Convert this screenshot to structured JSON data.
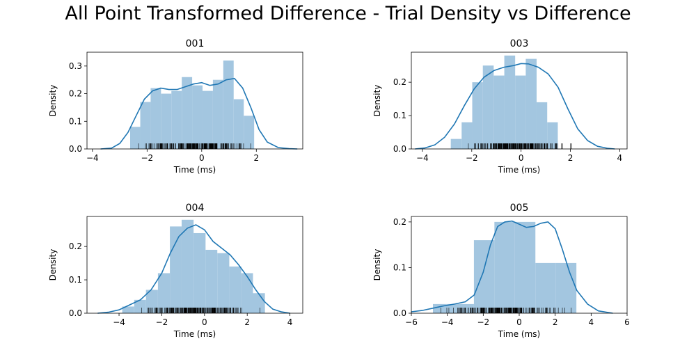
{
  "title": "All Point Transformed Difference - Trial Density vs Difference",
  "hist_color": "#a3c6e0",
  "kde_color": "#1f77b4",
  "rug_color": "#000000",
  "chart_data": [
    {
      "type": "histogram-kde",
      "title": "001",
      "xlabel": "Time (ms)",
      "ylabel": "Density",
      "xlim": [
        -4.2,
        3.7
      ],
      "ylim": [
        0,
        0.35
      ],
      "xticks": [
        -4,
        -2,
        0,
        2
      ],
      "yticks": [
        0.0,
        0.1,
        0.2,
        0.3
      ],
      "bin_edges": [
        -2.62,
        -2.25,
        -1.87,
        -1.49,
        -1.11,
        -0.73,
        -0.35,
        0.03,
        0.41,
        0.79,
        1.17,
        1.54,
        1.92,
        2.3
      ],
      "bin_values": [
        0.08,
        0.17,
        0.22,
        0.2,
        0.21,
        0.26,
        0.23,
        0.21,
        0.25,
        0.32,
        0.18,
        0.12,
        0.0
      ],
      "kde": [
        [
          -3.7,
          0.0
        ],
        [
          -3.3,
          0.003
        ],
        [
          -3.0,
          0.02
        ],
        [
          -2.7,
          0.06
        ],
        [
          -2.4,
          0.12
        ],
        [
          -2.1,
          0.18
        ],
        [
          -1.8,
          0.21
        ],
        [
          -1.5,
          0.22
        ],
        [
          -1.2,
          0.215
        ],
        [
          -0.9,
          0.215
        ],
        [
          -0.6,
          0.225
        ],
        [
          -0.3,
          0.235
        ],
        [
          0.0,
          0.24
        ],
        [
          0.3,
          0.23
        ],
        [
          0.6,
          0.235
        ],
        [
          0.9,
          0.25
        ],
        [
          1.2,
          0.255
        ],
        [
          1.5,
          0.22
        ],
        [
          1.8,
          0.15
        ],
        [
          2.1,
          0.07
        ],
        [
          2.4,
          0.025
        ],
        [
          2.8,
          0.005
        ],
        [
          3.2,
          0.001
        ],
        [
          3.5,
          0.0
        ]
      ],
      "rug_range": [
        -2.6,
        2.3
      ]
    },
    {
      "type": "histogram-kde",
      "title": "003",
      "xlabel": "Time (ms)",
      "ylabel": "Density",
      "xlim": [
        -4.45,
        4.3
      ],
      "ylim": [
        0,
        0.29
      ],
      "xticks": [
        -4,
        -2,
        0,
        2,
        4
      ],
      "yticks": [
        0.0,
        0.1,
        0.2
      ],
      "bin_edges": [
        -2.85,
        -2.41,
        -1.98,
        -1.55,
        -1.11,
        -0.68,
        -0.24,
        0.19,
        0.63,
        1.06,
        1.49,
        1.93,
        2.36
      ],
      "bin_values": [
        0.03,
        0.08,
        0.2,
        0.25,
        0.22,
        0.28,
        0.22,
        0.27,
        0.14,
        0.08,
        0.0,
        0.0
      ],
      "kde": [
        [
          -4.3,
          0.0
        ],
        [
          -3.9,
          0.003
        ],
        [
          -3.5,
          0.012
        ],
        [
          -3.1,
          0.035
        ],
        [
          -2.7,
          0.075
        ],
        [
          -2.3,
          0.13
        ],
        [
          -1.9,
          0.18
        ],
        [
          -1.5,
          0.215
        ],
        [
          -1.1,
          0.235
        ],
        [
          -0.7,
          0.245
        ],
        [
          -0.3,
          0.25
        ],
        [
          0.0,
          0.256
        ],
        [
          0.3,
          0.255
        ],
        [
          0.7,
          0.245
        ],
        [
          1.1,
          0.225
        ],
        [
          1.5,
          0.185
        ],
        [
          1.9,
          0.12
        ],
        [
          2.3,
          0.06
        ],
        [
          2.7,
          0.025
        ],
        [
          3.1,
          0.008
        ],
        [
          3.5,
          0.002
        ],
        [
          3.8,
          0.0
        ]
      ],
      "rug_range": [
        -2.85,
        2.5
      ]
    },
    {
      "type": "histogram-kde",
      "title": "004",
      "xlabel": "Time (ms)",
      "ylabel": "Density",
      "xlim": [
        -5.5,
        4.6
      ],
      "ylim": [
        0,
        0.29
      ],
      "xticks": [
        -4,
        -2,
        0,
        2,
        4
      ],
      "yticks": [
        0.0,
        0.1,
        0.2
      ],
      "bin_edges": [
        -3.85,
        -3.29,
        -2.74,
        -2.18,
        -1.62,
        -1.07,
        -0.51,
        0.05,
        0.6,
        1.16,
        1.72,
        2.27,
        2.83
      ],
      "bin_values": [
        0.02,
        0.04,
        0.07,
        0.12,
        0.26,
        0.28,
        0.24,
        0.19,
        0.18,
        0.14,
        0.12,
        0.06
      ],
      "kde": [
        [
          -5.0,
          0.0
        ],
        [
          -4.5,
          0.003
        ],
        [
          -4.0,
          0.01
        ],
        [
          -3.5,
          0.025
        ],
        [
          -3.0,
          0.04
        ],
        [
          -2.5,
          0.07
        ],
        [
          -2.0,
          0.12
        ],
        [
          -1.6,
          0.18
        ],
        [
          -1.2,
          0.23
        ],
        [
          -0.8,
          0.255
        ],
        [
          -0.4,
          0.265
        ],
        [
          0.0,
          0.25
        ],
        [
          0.4,
          0.215
        ],
        [
          0.8,
          0.195
        ],
        [
          1.2,
          0.175
        ],
        [
          1.6,
          0.145
        ],
        [
          2.0,
          0.11
        ],
        [
          2.4,
          0.07
        ],
        [
          2.8,
          0.035
        ],
        [
          3.2,
          0.012
        ],
        [
          3.6,
          0.004
        ],
        [
          4.0,
          0.0
        ]
      ],
      "rug_range": [
        -3.9,
        3.0
      ]
    },
    {
      "type": "histogram-kde",
      "title": "005",
      "xlabel": "Time (ms)",
      "ylabel": "Density",
      "xlim": [
        -6,
        6
      ],
      "ylim": [
        0,
        0.212
      ],
      "xticks": [
        -6,
        -4,
        -2,
        0,
        2,
        4,
        6
      ],
      "yticks": [
        0.0,
        0.1,
        0.2
      ],
      "bin_edges": [
        -4.8,
        -3.66,
        -2.52,
        -1.38,
        -0.24,
        0.9,
        2.04,
        3.18
      ],
      "bin_values": [
        0.02,
        0.02,
        0.16,
        0.2,
        0.2,
        0.11,
        0.11
      ],
      "kde": [
        [
          -6.0,
          0.003
        ],
        [
          -5.4,
          0.006
        ],
        [
          -4.8,
          0.011
        ],
        [
          -4.2,
          0.016
        ],
        [
          -3.6,
          0.02
        ],
        [
          -3.0,
          0.025
        ],
        [
          -2.5,
          0.04
        ],
        [
          -2.0,
          0.09
        ],
        [
          -1.6,
          0.15
        ],
        [
          -1.2,
          0.19
        ],
        [
          -0.8,
          0.2
        ],
        [
          -0.4,
          0.202
        ],
        [
          0.0,
          0.195
        ],
        [
          0.4,
          0.188
        ],
        [
          0.8,
          0.19
        ],
        [
          1.2,
          0.197
        ],
        [
          1.6,
          0.2
        ],
        [
          2.0,
          0.185
        ],
        [
          2.4,
          0.14
        ],
        [
          2.8,
          0.09
        ],
        [
          3.2,
          0.05
        ],
        [
          3.8,
          0.02
        ],
        [
          4.4,
          0.005
        ],
        [
          5.2,
          0.0
        ]
      ],
      "rug_range": [
        -4.9,
        3.3
      ]
    }
  ]
}
